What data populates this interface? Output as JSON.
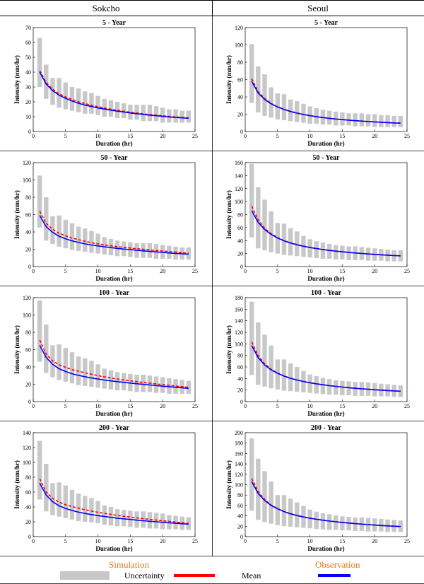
{
  "columns": [
    "Sokcho",
    "Seoul"
  ],
  "legend": {
    "simulation_label": "Simulation",
    "observation_label": "Observation",
    "uncertainty_label": "Uncertainty",
    "mean_label": "Mean",
    "colors": {
      "uncertainty": "#c8c8c8",
      "mean": "#ff0000",
      "observation": "#0000ff",
      "heading": "#e07a10"
    }
  },
  "chart_data": [
    {
      "type": "line",
      "station": "Sokcho",
      "title": "5 - Year",
      "xlabel": "Duration (hr)",
      "ylabel": "Intensity (mm/hr)",
      "xlim": [
        0,
        25
      ],
      "ylim": [
        0,
        70
      ],
      "xticks": [
        0,
        5,
        10,
        15,
        20,
        25
      ],
      "yticks": [
        0,
        10,
        20,
        30,
        40,
        50,
        60,
        70
      ],
      "x": [
        1,
        2,
        3,
        4,
        5,
        6,
        7,
        8,
        9,
        10,
        11,
        12,
        13,
        14,
        15,
        16,
        17,
        18,
        19,
        20,
        21,
        22,
        23,
        24
      ],
      "uncertainty_upper": [
        63,
        45,
        36,
        36,
        33,
        30,
        29,
        27,
        26,
        24,
        22,
        21,
        20,
        19,
        18,
        18,
        18,
        18,
        17,
        16,
        15,
        15,
        14,
        14
      ],
      "uncertainty_lower": [
        30,
        22,
        18,
        16,
        15,
        14,
        13,
        12,
        12,
        11,
        10,
        10,
        9,
        9,
        8,
        8,
        7,
        7,
        7,
        6,
        6,
        6,
        6,
        6
      ],
      "mean": [
        41,
        33,
        28.5,
        25.5,
        23.3,
        21.5,
        20,
        18.8,
        17.7,
        16.7,
        15.8,
        15,
        14.3,
        13.6,
        13,
        12.5,
        11.9,
        11.4,
        11,
        10.6,
        10.2,
        9.8,
        9.5,
        9.2
      ],
      "observation": [
        40,
        32,
        27.5,
        24.5,
        22.3,
        20.5,
        19,
        17.8,
        16.8,
        15.9,
        15.1,
        14.4,
        13.7,
        13.1,
        12.5,
        12,
        11.5,
        11,
        10.6,
        10.2,
        9.8,
        9.5,
        9.2,
        8.9
      ]
    },
    {
      "type": "line",
      "station": "Seoul",
      "title": "5 - Year",
      "xlabel": "Duration (hr)",
      "ylabel": "Intensity (mm/hr)",
      "xlim": [
        0,
        25
      ],
      "ylim": [
        0,
        120
      ],
      "xticks": [
        0,
        5,
        10,
        15,
        20,
        25
      ],
      "yticks": [
        0,
        20,
        40,
        60,
        80,
        100,
        120
      ],
      "x": [
        1,
        2,
        3,
        4,
        5,
        6,
        7,
        8,
        9,
        10,
        11,
        12,
        13,
        14,
        15,
        16,
        17,
        18,
        19,
        20,
        21,
        22,
        23,
        24
      ],
      "uncertainty_upper": [
        101,
        75,
        66,
        51,
        44,
        43,
        37,
        35,
        32,
        29,
        27,
        25,
        24,
        23,
        22,
        21,
        21,
        21,
        20,
        20,
        19,
        19,
        18,
        18
      ],
      "uncertainty_lower": [
        33,
        22,
        18,
        16,
        14,
        13,
        12,
        11,
        10,
        9,
        9,
        8,
        8,
        7,
        7,
        7,
        6,
        6,
        6,
        5,
        5,
        5,
        5,
        5
      ],
      "mean": [
        61,
        46,
        38,
        32.5,
        28.6,
        25.6,
        23.3,
        21.4,
        19.8,
        18.4,
        17.2,
        16.2,
        15.3,
        14.5,
        13.8,
        13.2,
        12.6,
        12.1,
        11.6,
        11.2,
        10.8,
        10.4,
        10,
        9.7
      ],
      "observation": [
        58,
        44.5,
        37,
        32,
        28.3,
        25.4,
        23.1,
        21.2,
        19.6,
        18.3,
        17.1,
        16.1,
        15.2,
        14.4,
        13.7,
        13.1,
        12.5,
        12,
        11.5,
        11.1,
        10.7,
        10.3,
        9.9,
        9.6
      ]
    },
    {
      "type": "line",
      "station": "Sokcho",
      "title": "50 - Year",
      "xlabel": "Duration (hr)",
      "ylabel": "Intensity (mm/hr)",
      "xlim": [
        0,
        25
      ],
      "ylim": [
        0,
        120
      ],
      "xticks": [
        0,
        5,
        10,
        15,
        20,
        25
      ],
      "yticks": [
        0,
        20,
        40,
        60,
        80,
        100,
        120
      ],
      "x": [
        1,
        2,
        3,
        4,
        5,
        6,
        7,
        8,
        9,
        10,
        11,
        12,
        13,
        14,
        15,
        16,
        17,
        18,
        19,
        20,
        21,
        22,
        23,
        24
      ],
      "uncertainty_upper": [
        105,
        80,
        58,
        59,
        54,
        50,
        46,
        44,
        41,
        38,
        34,
        32,
        30,
        29,
        28,
        27,
        27,
        27,
        26,
        25,
        24,
        23,
        22,
        22
      ],
      "uncertainty_lower": [
        45,
        30,
        26,
        23,
        21,
        19,
        18,
        17,
        16,
        15,
        14,
        13,
        12,
        12,
        11,
        10,
        10,
        10,
        9,
        9,
        9,
        8,
        8,
        8
      ],
      "mean": [
        64,
        50,
        43,
        38.5,
        35.5,
        33,
        31,
        29.2,
        27.6,
        26.2,
        25,
        24,
        23,
        22.2,
        21.4,
        20.6,
        19.9,
        19.2,
        18.5,
        17.9,
        17.3,
        16.7,
        16.1,
        15.5
      ],
      "observation": [
        59,
        46,
        39.5,
        35,
        32,
        29.6,
        27.8,
        26.2,
        24.9,
        23.8,
        22.8,
        21.9,
        21,
        20.2,
        19.5,
        18.8,
        18.1,
        17.5,
        16.9,
        16.3,
        15.7,
        15.2,
        14.7,
        14.2
      ]
    },
    {
      "type": "line",
      "station": "Seoul",
      "title": "50 - Year",
      "xlabel": "Duration (hr)",
      "ylabel": "Intensity (mm/hr)",
      "xlim": [
        0,
        25
      ],
      "ylim": [
        0,
        160
      ],
      "xticks": [
        0,
        5,
        10,
        15,
        20,
        25
      ],
      "yticks": [
        0,
        20,
        40,
        60,
        80,
        100,
        120,
        140,
        160
      ],
      "x": [
        1,
        2,
        3,
        4,
        5,
        6,
        7,
        8,
        9,
        10,
        11,
        12,
        13,
        14,
        15,
        16,
        17,
        18,
        19,
        20,
        21,
        22,
        23,
        24
      ],
      "uncertainty_upper": [
        158,
        122,
        103,
        85,
        67,
        66,
        59,
        54,
        47,
        42,
        39,
        37,
        35,
        33,
        32,
        31,
        31,
        30,
        29,
        28,
        27,
        26,
        25,
        25
      ],
      "uncertainty_lower": [
        45,
        28,
        25,
        22,
        20,
        18,
        17,
        16,
        15,
        14,
        13,
        12,
        12,
        11,
        11,
        10,
        10,
        10,
        9,
        9,
        9,
        8,
        8,
        8
      ],
      "mean": [
        93,
        72,
        59,
        50.5,
        44.5,
        40,
        36.5,
        33.8,
        31.5,
        29.5,
        27.8,
        26.3,
        25,
        23.8,
        22.8,
        21.8,
        21,
        20.2,
        19.5,
        18.8,
        18.2,
        17.6,
        17,
        16.5
      ],
      "observation": [
        86,
        68,
        57,
        49.5,
        44,
        39.6,
        36.2,
        33.5,
        31.2,
        29.3,
        27.6,
        26.1,
        24.8,
        23.7,
        22.7,
        21.7,
        20.9,
        20.1,
        19.4,
        18.7,
        18.1,
        17.5,
        16.9,
        16.4
      ]
    },
    {
      "type": "line",
      "station": "Sokcho",
      "title": "100 - Year",
      "xlabel": "Duration (hr)",
      "ylabel": "Intensity (mm/hr)",
      "xlim": [
        0,
        25
      ],
      "ylim": [
        0,
        120
      ],
      "xticks": [
        0,
        5,
        10,
        15,
        20,
        25
      ],
      "yticks": [
        0,
        20,
        40,
        60,
        80,
        100,
        120
      ],
      "x": [
        1,
        2,
        3,
        4,
        5,
        6,
        7,
        8,
        9,
        10,
        11,
        12,
        13,
        14,
        15,
        16,
        17,
        18,
        19,
        20,
        21,
        22,
        23,
        24
      ],
      "uncertainty_upper": [
        117,
        89,
        65,
        66,
        62,
        57,
        52,
        50,
        47,
        43,
        38,
        36,
        34,
        33,
        32,
        31,
        31,
        30,
        29,
        28,
        27,
        26,
        25,
        24
      ],
      "uncertainty_lower": [
        46,
        33,
        28,
        25,
        23,
        21,
        19,
        18,
        17,
        16,
        15,
        14,
        13,
        13,
        12,
        11,
        11,
        11,
        10,
        10,
        9,
        9,
        9,
        9
      ],
      "mean": [
        71,
        55,
        47,
        42.5,
        39.5,
        37,
        35,
        33.2,
        31.6,
        30,
        28.6,
        27.3,
        26,
        25,
        24,
        23,
        22,
        21.2,
        20.4,
        19.6,
        18.8,
        18,
        17.2,
        16.5
      ],
      "observation": [
        65,
        51,
        43,
        38,
        34.7,
        32.2,
        30.3,
        28.7,
        27.3,
        26,
        24.9,
        23.9,
        23,
        22.2,
        21.4,
        20.6,
        19.9,
        19.2,
        18.5,
        17.8,
        17.1,
        16.5,
        15.9,
        15.3
      ]
    },
    {
      "type": "line",
      "station": "Seoul",
      "title": "100 - Year",
      "xlabel": "Duration (hr)",
      "ylabel": "Intensity (mm/hr)",
      "xlim": [
        0,
        25
      ],
      "ylim": [
        0,
        180
      ],
      "xticks": [
        0,
        5,
        10,
        15,
        20,
        25
      ],
      "yticks": [
        0,
        20,
        40,
        60,
        80,
        100,
        120,
        140,
        160,
        180
      ],
      "x": [
        1,
        2,
        3,
        4,
        5,
        6,
        7,
        8,
        9,
        10,
        11,
        12,
        13,
        14,
        15,
        16,
        17,
        18,
        19,
        20,
        21,
        22,
        23,
        24
      ],
      "uncertainty_upper": [
        173,
        137,
        116,
        97,
        73,
        73,
        66,
        60,
        53,
        47,
        44,
        41,
        39,
        37,
        36,
        35,
        34,
        34,
        33,
        32,
        31,
        30,
        29,
        28
      ],
      "uncertainty_lower": [
        46,
        29,
        26,
        23,
        21,
        19,
        18,
        17,
        16,
        15,
        14,
        13,
        12,
        12,
        11,
        11,
        10,
        10,
        10,
        9,
        9,
        9,
        8,
        8
      ],
      "mean": [
        103,
        80,
        65.5,
        56,
        49.5,
        44.5,
        40.5,
        37.5,
        35,
        32.8,
        30.9,
        29.3,
        27.8,
        26.5,
        25.3,
        24.2,
        23.2,
        22.3,
        21.5,
        20.7,
        20,
        19.3,
        18.7,
        18.1
      ],
      "observation": [
        97,
        76,
        63.5,
        55,
        49,
        44.1,
        40.3,
        37.3,
        34.8,
        32.6,
        30.7,
        29.1,
        27.6,
        26.3,
        25.1,
        24,
        23,
        22.1,
        21.3,
        20.5,
        19.8,
        19.1,
        18.5,
        17.9
      ]
    },
    {
      "type": "line",
      "station": "Sokcho",
      "title": "200 - Year",
      "xlabel": "Duration (hr)",
      "ylabel": "Intensity (mm/hr)",
      "xlim": [
        0,
        25
      ],
      "ylim": [
        0,
        140
      ],
      "xticks": [
        0,
        5,
        10,
        15,
        20,
        25
      ],
      "yticks": [
        0,
        20,
        40,
        60,
        80,
        100,
        120,
        140
      ],
      "x": [
        1,
        2,
        3,
        4,
        5,
        6,
        7,
        8,
        9,
        10,
        11,
        12,
        13,
        14,
        15,
        16,
        17,
        18,
        19,
        20,
        21,
        22,
        23,
        24
      ],
      "uncertainty_upper": [
        129,
        98,
        72,
        73,
        69,
        63,
        58,
        55,
        52,
        48,
        42,
        40,
        37,
        36,
        35,
        34,
        34,
        33,
        32,
        31,
        29,
        28,
        27,
        26
      ],
      "uncertainty_lower": [
        50,
        34,
        29,
        27,
        25,
        23,
        21,
        20,
        19,
        18,
        16,
        15,
        14,
        14,
        13,
        12,
        12,
        11,
        11,
        10,
        10,
        10,
        9,
        9
      ],
      "mean": [
        78,
        60,
        51.5,
        46.5,
        43,
        40.5,
        38.2,
        36.3,
        34.5,
        32.8,
        31.3,
        29.9,
        28.6,
        27.4,
        26.3,
        25.2,
        24.2,
        23.2,
        22.3,
        21.4,
        20.5,
        19.6,
        18.8,
        18
      ],
      "observation": [
        72,
        56,
        47,
        41.5,
        38,
        35.2,
        33,
        31.2,
        29.7,
        28.3,
        27.1,
        26,
        24.9,
        24,
        23.1,
        22.2,
        21.4,
        20.7,
        20,
        19.3,
        18.6,
        18,
        17.4,
        16.8
      ]
    },
    {
      "type": "line",
      "station": "Seoul",
      "title": "200 - Year",
      "xlabel": "Duration (hr)",
      "ylabel": "Intensity (mm/hr)",
      "xlim": [
        0,
        25
      ],
      "ylim": [
        0,
        200
      ],
      "xticks": [
        0,
        5,
        10,
        15,
        20,
        25
      ],
      "yticks": [
        0,
        20,
        40,
        60,
        80,
        100,
        120,
        140,
        160,
        180,
        200
      ],
      "x": [
        1,
        2,
        3,
        4,
        5,
        6,
        7,
        8,
        9,
        10,
        11,
        12,
        13,
        14,
        15,
        16,
        17,
        18,
        19,
        20,
        21,
        22,
        23,
        24
      ],
      "uncertainty_upper": [
        189,
        150,
        126,
        106,
        80,
        80,
        73,
        66,
        59,
        52,
        48,
        45,
        43,
        41,
        39,
        38,
        37,
        37,
        36,
        35,
        34,
        33,
        32,
        31
      ],
      "uncertainty_lower": [
        50,
        32,
        28,
        25,
        22,
        20,
        19,
        18,
        17,
        16,
        15,
        14,
        13,
        13,
        12,
        12,
        11,
        11,
        10,
        10,
        10,
        9,
        9,
        9
      ],
      "mean": [
        112,
        87,
        71.5,
        61,
        54,
        48.5,
        44.2,
        40.8,
        38,
        35.6,
        33.6,
        31.8,
        30.2,
        28.8,
        27.5,
        26.3,
        25.2,
        24.2,
        23.3,
        22.4,
        21.6,
        20.9,
        20.2,
        19.6
      ],
      "observation": [
        106,
        83,
        69.5,
        60,
        53.5,
        48.1,
        44,
        40.6,
        37.8,
        35.4,
        33.4,
        31.6,
        30,
        28.6,
        27.3,
        26.1,
        25,
        24,
        23.1,
        22.2,
        21.4,
        20.7,
        20,
        19.4
      ]
    }
  ]
}
